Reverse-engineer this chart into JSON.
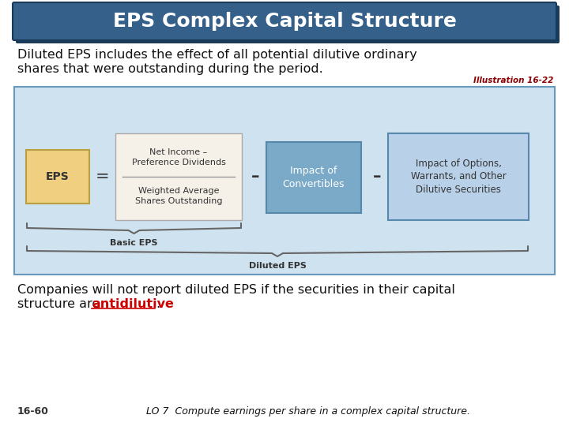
{
  "title": "EPS Complex Capital Structure",
  "title_bg_color": "#34608a",
  "title_text_color": "#ffffff",
  "title_shadow_color": "#1a3a5a",
  "slide_bg_color": "#ffffff",
  "body_text1_line1": "Diluted EPS includes the effect of all potential dilutive ordinary",
  "body_text1_line2": "shares that were outstanding during the period.",
  "illustration_label": "Illustration 16-22",
  "illustration_color": "#8b0000",
  "diagram_bg_color": "#cfe2f0",
  "diagram_border_color": "#6699bb",
  "eps_box_color": "#f0d080",
  "eps_box_border": "#b8a040",
  "fraction_box_color": "#f5f0e8",
  "fraction_box_border": "#aaaaaa",
  "blue_box_color": "#7aaac8",
  "blue_box_border": "#5588aa",
  "light_blue_box_color": "#b8d0e8",
  "light_blue_box_border": "#5588aa",
  "eps_label": "EPS",
  "fraction_top_line1": "Net Income –",
  "fraction_top_line2": "Preference Dividends",
  "fraction_bottom_line1": "Weighted Average",
  "fraction_bottom_line2": "Shares Outstanding",
  "convertibles_label_line1": "Impact of",
  "convertibles_label_line2": "Convertibles",
  "options_label_line1": "Impact of Options,",
  "options_label_line2": "Warrants, and Other",
  "options_label_line3": "Dilutive Securities",
  "basic_eps_label": "Basic EPS",
  "diluted_eps_label": "Diluted EPS",
  "bottom_line1": "Companies will not report diluted EPS if the securities in their capital",
  "bottom_line2_before": "structure are ",
  "bottom_text_highlight": "antidilutive",
  "bottom_line2_after": ".",
  "highlight_color": "#cc0000",
  "page_number": "16-60",
  "lo_text": "LO 7  Compute earnings per share in a complex capital structure.",
  "brace_color": "#666666",
  "text_color": "#111111",
  "eq_sign": "=",
  "minus_sign": "–"
}
